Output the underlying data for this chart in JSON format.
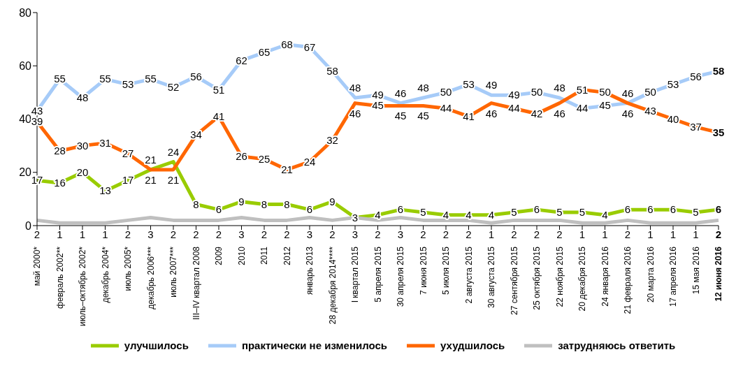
{
  "chart_data": {
    "type": "line",
    "categories": [
      "май 2000*",
      "февраль 2002**",
      "июль–октябрь 2002*",
      "декабрь 2004*",
      "июль 2005*",
      "декабрь 2006***",
      "июль 2007***",
      "III–IV квартал 2008",
      "2009",
      "2010",
      "2011",
      "2012",
      "январь 2013",
      "28 декабря 2014****",
      "I квартал 2015",
      "5 апреля 2015",
      "30 апреля 2015",
      "7 июня 2015",
      "5 июля 2015",
      "2 августа 2015",
      "30 августа 2015",
      "27 сентября 2015",
      "25 октября 2015",
      "22 ноября 2015",
      "20 декабря 2015",
      "24 января 2016",
      "21 февраля 2016",
      "20 марта 2016",
      "17 апреля 2016",
      "15 мая 2016",
      "12 июня 2016"
    ],
    "series": [
      {
        "name": "улучшилось",
        "color": "#99cc00",
        "values": [
          17,
          16,
          20,
          13,
          17,
          21,
          24,
          8,
          6,
          9,
          8,
          8,
          6,
          9,
          3,
          4,
          6,
          5,
          4,
          4,
          4,
          5,
          6,
          5,
          5,
          4,
          6,
          6,
          6,
          5,
          6
        ]
      },
      {
        "name": "практически не изменилось",
        "color": "#a6cbf8",
        "values": [
          43,
          55,
          48,
          55,
          53,
          55,
          52,
          56,
          51,
          62,
          65,
          68,
          67,
          58,
          48,
          49,
          46,
          48,
          50,
          53,
          49,
          49,
          50,
          48,
          44,
          45,
          46,
          50,
          53,
          56,
          58
        ]
      },
      {
        "name": "ухудшилось",
        "color": "#ff6600",
        "values": [
          39,
          28,
          30,
          31,
          27,
          21,
          21,
          34,
          41,
          26,
          25,
          21,
          24,
          32,
          46,
          45,
          45,
          45,
          44,
          41,
          46,
          44,
          42,
          46,
          51,
          50,
          46,
          43,
          40,
          37,
          35
        ]
      },
      {
        "name": "затрудняюсь ответить",
        "color": "#bfbfbf",
        "values": [
          2,
          1,
          1,
          1,
          2,
          3,
          2,
          2,
          2,
          3,
          2,
          2,
          3,
          2,
          3,
          2,
          3,
          2,
          2,
          2,
          1,
          2,
          2,
          2,
          1,
          1,
          2,
          1,
          1,
          1,
          2
        ]
      }
    ],
    "ylim": [
      0,
      80
    ],
    "yticks": [
      0,
      20,
      40,
      60,
      80
    ],
    "grid": false,
    "legend": "bottom",
    "marker": "none",
    "line_style": "solid",
    "data_labels": true
  }
}
